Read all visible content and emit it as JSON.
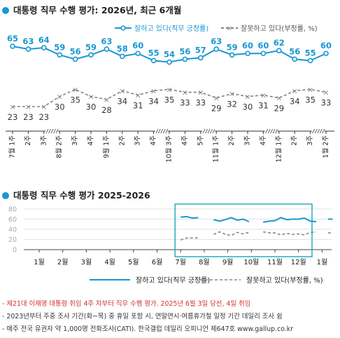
{
  "chart_data": [
    {
      "type": "line",
      "title": "대통령 직무 수행 평가: 2026년, 최근 6개월",
      "categories": [
        "7월 1주",
        "2주",
        "3주",
        "8월 2주",
        "3주",
        "4주",
        "9월 1주",
        "2주",
        "3주",
        "4주",
        "10월 3주",
        "4주",
        "5주",
        "11월 1주",
        "2주",
        "3주",
        "4주",
        "12월 1주",
        "2주",
        "3주",
        "1월 2주"
      ],
      "series": [
        {
          "name": "잘하고 있다(직무 긍정률)",
          "color": "#1a96d4",
          "style": "solid",
          "values": [
            65,
            63,
            64,
            59,
            56,
            59,
            63,
            58,
            60,
            55,
            54,
            56,
            57,
            63,
            59,
            60,
            60,
            62,
            56,
            55,
            60
          ]
        },
        {
          "name": "잘못하고 있다(부정률, %)",
          "color": "#7a8590",
          "style": "dashed",
          "values": [
            23,
            23,
            23,
            30,
            35,
            30,
            28,
            34,
            31,
            34,
            35,
            33,
            33,
            29,
            32,
            30,
            31,
            29,
            34,
            35,
            33
          ]
        }
      ],
      "breaks_after": [
        2,
        9,
        12,
        16,
        19
      ]
    },
    {
      "type": "line",
      "title": "대통령 직무 수행 평가 2025-2026",
      "xlabels": [
        "1월",
        "2월",
        "3월",
        "4월",
        "5월",
        "6월",
        "7월",
        "8월",
        "9월",
        "10월",
        "11월",
        "12월",
        "1월"
      ],
      "yticks": [
        0,
        20,
        40,
        60,
        80
      ],
      "ylim": [
        0,
        80
      ],
      "series": [
        {
          "name": "잘하고 있다(직무 긍정률)",
          "color": "#1a96d4",
          "style": "solid",
          "segments": [
            [
              [
                6.0,
                64
              ],
              [
                6.25,
                65
              ],
              [
                6.5,
                62
              ],
              [
                6.75,
                63
              ]
            ],
            [
              [
                7.4,
                59
              ],
              [
                7.65,
                56
              ],
              [
                7.9,
                59
              ],
              [
                8.15,
                63
              ],
              [
                8.4,
                58
              ],
              [
                8.65,
                60
              ],
              [
                8.9,
                55
              ]
            ],
            [
              [
                9.5,
                54
              ],
              [
                9.75,
                56
              ],
              [
                10.0,
                57
              ],
              [
                10.25,
                63
              ],
              [
                10.5,
                59
              ],
              [
                10.75,
                60
              ],
              [
                11.0,
                60
              ],
              [
                11.25,
                62
              ],
              [
                11.5,
                56
              ],
              [
                11.75,
                55
              ]
            ],
            [
              [
                12.25,
                60
              ],
              [
                12.45,
                60
              ]
            ]
          ]
        },
        {
          "name": "잘못하고 있다(부정률, %)",
          "color": "#888888",
          "style": "dashed",
          "segments": [
            [
              [
                6.0,
                19
              ],
              [
                6.25,
                23
              ],
              [
                6.5,
                23
              ],
              [
                6.75,
                23
              ]
            ],
            [
              [
                7.4,
                30
              ],
              [
                7.65,
                35
              ],
              [
                7.9,
                30
              ],
              [
                8.15,
                28
              ],
              [
                8.4,
                34
              ],
              [
                8.65,
                31
              ],
              [
                8.9,
                34
              ]
            ],
            [
              [
                9.5,
                35
              ],
              [
                9.75,
                33
              ],
              [
                10.0,
                33
              ],
              [
                10.25,
                29
              ],
              [
                10.5,
                32
              ],
              [
                10.75,
                30
              ],
              [
                11.0,
                31
              ],
              [
                11.25,
                29
              ],
              [
                11.5,
                34
              ],
              [
                11.75,
                35
              ]
            ],
            [
              [
                12.25,
                33
              ],
              [
                12.45,
                33
              ]
            ]
          ]
        }
      ],
      "highlight_from": 6.0
    }
  ],
  "legend_top": {
    "positive": "잘하고 있다(직무 긍정률)",
    "negative": "잘못하고 있다(부정률, %)"
  },
  "legend_bottom": {
    "positive": "잘하고 있다(직무 긍정률)",
    "negative": "잘못하고 있다(부정률, %)"
  },
  "notes": {
    "line1": "- 제21대 이재명 대통령 취임 4주 차부터 직무 수행 평가. 2025년 6월 3일 당선, 4일 취임",
    "line2": "- 2023년부터 주중 조사 기간(화~목) 중 휴일 포함 시, 연말연시·여름휴가철 일정 기간 데일리 조사 쉼",
    "line3": "- 매주 전국 유권자 약 1,000명 전화조사(CATI). 한국갤럽 데일리 오피니언 제647호 www.gallup.co.kr"
  }
}
